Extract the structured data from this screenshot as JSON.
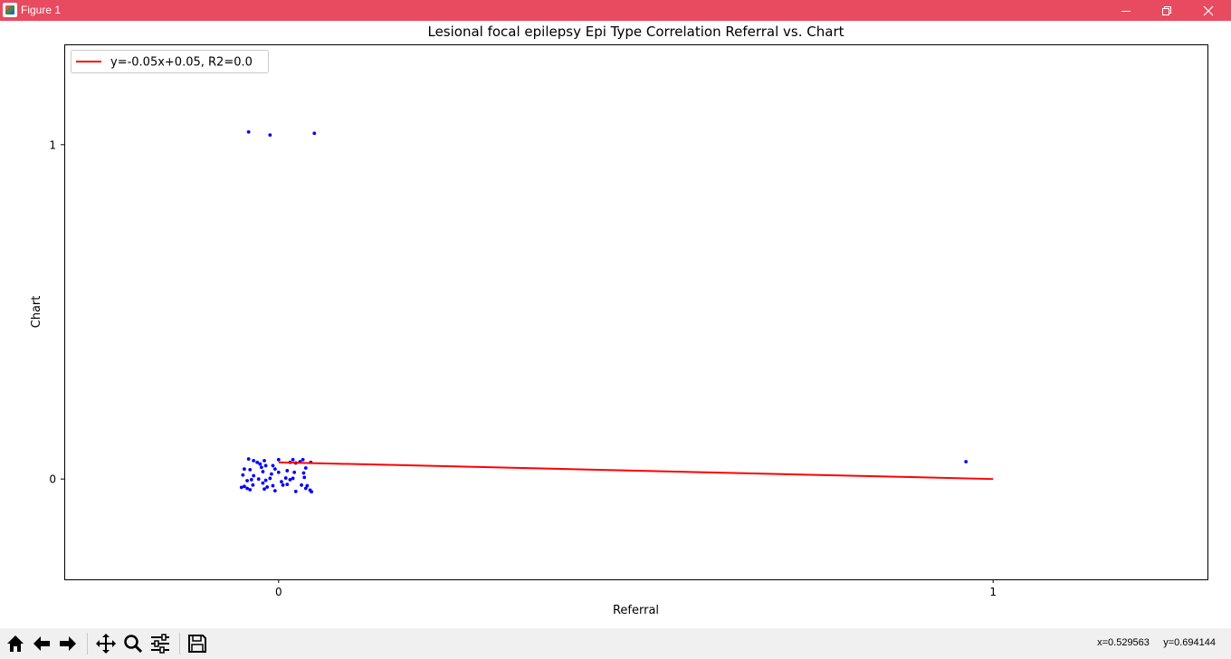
{
  "window": {
    "title": "Figure 1"
  },
  "chart_data": {
    "type": "scatter",
    "title": "Lesional focal epilepsy Epi Type Correlation Referral vs. Chart",
    "xlabel": "Referral",
    "ylabel": "Chart",
    "xlim": [
      -0.3,
      1.3
    ],
    "ylim": [
      -0.3,
      1.3
    ],
    "xticks": [
      {
        "value": 0,
        "label": "0"
      },
      {
        "value": 1,
        "label": "1"
      }
    ],
    "yticks": [
      {
        "value": 0,
        "label": "0"
      },
      {
        "value": 1,
        "label": "1"
      }
    ],
    "grid": false,
    "legend": {
      "location": "upper left",
      "entries": [
        "y=-0.05x+0.05, R2=0.0"
      ]
    },
    "series": [
      {
        "kind": "scatter",
        "color": "#0000ff",
        "points": [
          [
            -0.042,
            1.038
          ],
          [
            -0.012,
            1.029
          ],
          [
            0.05,
            1.034
          ],
          [
            -0.042,
            0.06
          ],
          [
            -0.035,
            0.055
          ],
          [
            -0.03,
            0.05
          ],
          [
            -0.02,
            0.055
          ],
          [
            0.0,
            0.058
          ],
          [
            0.02,
            0.058
          ],
          [
            0.03,
            0.052
          ],
          [
            0.034,
            0.058
          ],
          [
            0.045,
            0.05
          ],
          [
            -0.026,
            0.045
          ],
          [
            -0.018,
            0.04
          ],
          [
            -0.008,
            0.04
          ],
          [
            0.016,
            0.05
          ],
          [
            0.024,
            0.048
          ],
          [
            -0.048,
            0.03
          ],
          [
            -0.04,
            0.028
          ],
          [
            -0.024,
            0.035
          ],
          [
            -0.005,
            0.03
          ],
          [
            0.012,
            0.025
          ],
          [
            0.038,
            0.033
          ],
          [
            -0.05,
            0.012
          ],
          [
            -0.035,
            0.01
          ],
          [
            -0.022,
            0.022
          ],
          [
            -0.01,
            0.015
          ],
          [
            0.0,
            0.02
          ],
          [
            0.022,
            0.02
          ],
          [
            0.035,
            0.018
          ],
          [
            -0.044,
            -0.005
          ],
          [
            -0.038,
            -0.002
          ],
          [
            -0.028,
            0.0
          ],
          [
            -0.018,
            -0.004
          ],
          [
            -0.012,
            0.002
          ],
          [
            0.004,
            -0.008
          ],
          [
            0.01,
            0.003
          ],
          [
            0.016,
            -0.002
          ],
          [
            0.02,
            0.002
          ],
          [
            0.036,
            0.005
          ],
          [
            -0.048,
            -0.022
          ],
          [
            -0.044,
            -0.028
          ],
          [
            -0.036,
            -0.018
          ],
          [
            -0.022,
            -0.012
          ],
          [
            -0.016,
            -0.024
          ],
          [
            -0.008,
            -0.02
          ],
          [
            0.006,
            -0.018
          ],
          [
            0.012,
            -0.016
          ],
          [
            0.032,
            -0.018
          ],
          [
            0.04,
            -0.02
          ],
          [
            -0.052,
            -0.025
          ],
          [
            -0.04,
            -0.032
          ],
          [
            -0.02,
            -0.03
          ],
          [
            -0.005,
            -0.035
          ],
          [
            0.024,
            -0.037
          ],
          [
            0.038,
            -0.028
          ],
          [
            0.044,
            -0.033
          ],
          [
            0.046,
            -0.038
          ],
          [
            0.962,
            0.052
          ]
        ]
      },
      {
        "kind": "line",
        "name": "y=-0.05x+0.05, R2=0.0",
        "color": "#ff0000",
        "points": [
          [
            0,
            0.05
          ],
          [
            1,
            0.0
          ]
        ]
      }
    ]
  },
  "toolbar": {
    "buttons": [
      {
        "name": "home-button",
        "icon": "home-icon"
      },
      {
        "name": "back-button",
        "icon": "arrow-left-icon"
      },
      {
        "name": "forward-button",
        "icon": "arrow-right-icon"
      },
      {
        "name": "pan-button",
        "icon": "move-icon"
      },
      {
        "name": "zoom-button",
        "icon": "magnifier-icon"
      },
      {
        "name": "configure-subplots-button",
        "icon": "sliders-icon"
      },
      {
        "name": "save-button",
        "icon": "floppy-disk-icon"
      }
    ],
    "coords_text": "x=0.529563     y=0.694144"
  }
}
